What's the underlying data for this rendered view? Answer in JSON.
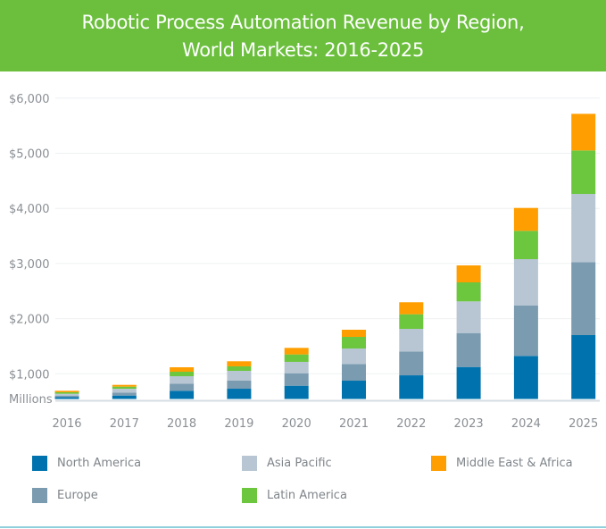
{
  "chart_data": {
    "type": "bar",
    "stacked": true,
    "title": "Robotic Process Automation Revenue by Region, World Markets: 2016-2025",
    "title_lines": [
      "Robotic Process Automation Revenue by Region,",
      "World Markets: 2016-2025"
    ],
    "ylabel": "Millions",
    "xlabel": "",
    "ylim": [
      0,
      6000
    ],
    "y_ticks": [
      1000,
      2000,
      3000,
      4000,
      5000,
      6000
    ],
    "y_tick_labels": [
      "$1,000",
      "$2,000",
      "$3,000",
      "$4,000",
      "$5,000",
      "$6,000"
    ],
    "grid": true,
    "legend_position": "bottom",
    "categories": [
      "2016",
      "2017",
      "2018",
      "2019",
      "2020",
      "2021",
      "2022",
      "2023",
      "2024",
      "2025"
    ],
    "series": [
      {
        "name": "North America",
        "color": "#0073ae",
        "values": [
          579,
          605,
          692,
          729,
          783,
          875,
          972,
          1123,
          1324,
          1702
        ]
      },
      {
        "name": "Europe",
        "color": "#7a9bb0",
        "values": [
          26,
          55,
          130,
          146,
          227,
          303,
          433,
          616,
          917,
          1323
        ]
      },
      {
        "name": "Asia Pacific",
        "color": "#b8c6d3",
        "values": [
          32,
          69,
          134,
          178,
          206,
          281,
          410,
          574,
          838,
          1237
        ]
      },
      {
        "name": "Latin America",
        "color": "#6cc63e",
        "values": [
          28,
          38,
          81,
          82,
          135,
          210,
          265,
          345,
          514,
          789
        ]
      },
      {
        "name": "Middle East & Africa",
        "color": "#ff9e00",
        "values": [
          27,
          32,
          81,
          92,
          119,
          130,
          217,
          308,
          415,
          664
        ]
      }
    ],
    "legend_order": [
      "North America",
      "Asia Pacific",
      "Middle East & Africa",
      "Europe",
      "Latin America"
    ]
  },
  "colors": {
    "header": "#6bbf3d",
    "grid": "#eef0f2",
    "axis": "#d6dde3"
  }
}
